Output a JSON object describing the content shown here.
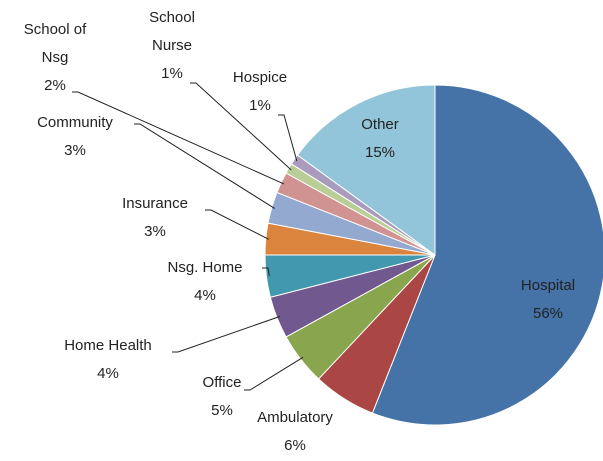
{
  "chart_data": {
    "type": "pie",
    "categories": [
      "Hospital",
      "Ambulatory",
      "Office",
      "Home Health",
      "Nsg. Home",
      "Insurance",
      "Community",
      "School of Nsg",
      "School Nurse",
      "Hospice",
      "Other"
    ],
    "values": [
      56,
      6,
      5,
      4,
      4,
      3,
      3,
      2,
      1,
      1,
      15
    ],
    "value_labels": [
      "56%",
      "6%",
      "5%",
      "4%",
      "4%",
      "3%",
      "3%",
      "2%",
      "1%",
      "1%",
      "15%"
    ],
    "colors": [
      "#4572a7",
      "#aa4643",
      "#89a54e",
      "#71588f",
      "#4198af",
      "#db843d",
      "#93a9cf",
      "#d19392",
      "#b9cd96",
      "#a99bbd",
      "#92c5d9"
    ]
  }
}
